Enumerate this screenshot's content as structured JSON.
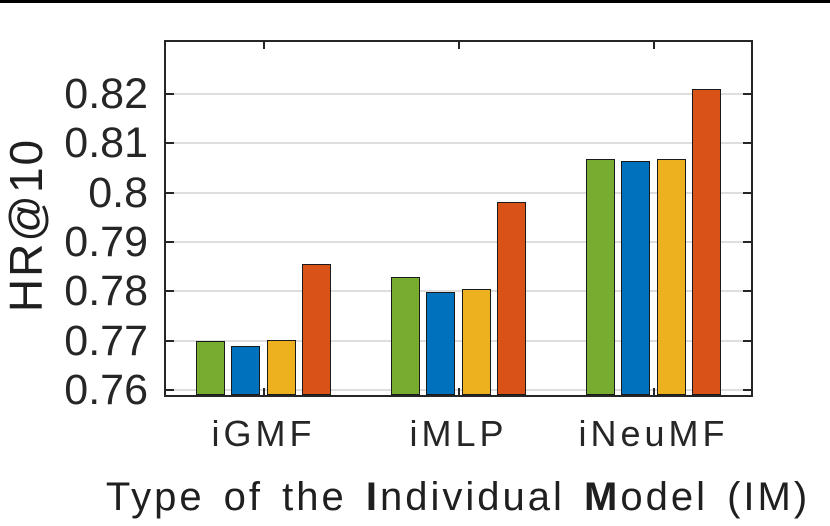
{
  "chart_data": {
    "type": "bar",
    "title": "",
    "categories": [
      "iGMF",
      "iMLP",
      "iNeuMF"
    ],
    "series": [
      {
        "name": "series-green",
        "color": "#77AC30",
        "values": [
          0.7699,
          0.7828,
          0.8069
        ]
      },
      {
        "name": "series-blue",
        "color": "#0072BD",
        "values": [
          0.7689,
          0.7799,
          0.8063
        ]
      },
      {
        "name": "series-yellow",
        "color": "#EDB120",
        "values": [
          0.7701,
          0.7804,
          0.8069
        ]
      },
      {
        "name": "series-orange",
        "color": "#D95319",
        "values": [
          0.7855,
          0.7981,
          0.8209
        ]
      }
    ],
    "xlabel": "Type of the Individual Model (IM)",
    "xlabel_segments": [
      {
        "text": "Type of the ",
        "bold": false
      },
      {
        "text": "I",
        "bold": true
      },
      {
        "text": "ndividual ",
        "bold": false
      },
      {
        "text": "M",
        "bold": true
      },
      {
        "text": "odel (IM)",
        "bold": false
      }
    ],
    "ylabel": "HR@10",
    "yticks": [
      0.76,
      0.77,
      0.78,
      0.79,
      0.8,
      0.81,
      0.82
    ],
    "ytick_labels": [
      "0.76",
      "0.77",
      "0.78",
      "0.79",
      "0.8",
      "0.81",
      "0.82"
    ],
    "ylim": [
      0.759,
      0.8305
    ],
    "grid": "horizontal",
    "legend_position": "none",
    "axis_color": "#262626",
    "grid_color": "#dedede",
    "bar_edge_color": "#1a1a1a",
    "tick_label_color": "#262626",
    "top_rule_color": "#000000"
  }
}
